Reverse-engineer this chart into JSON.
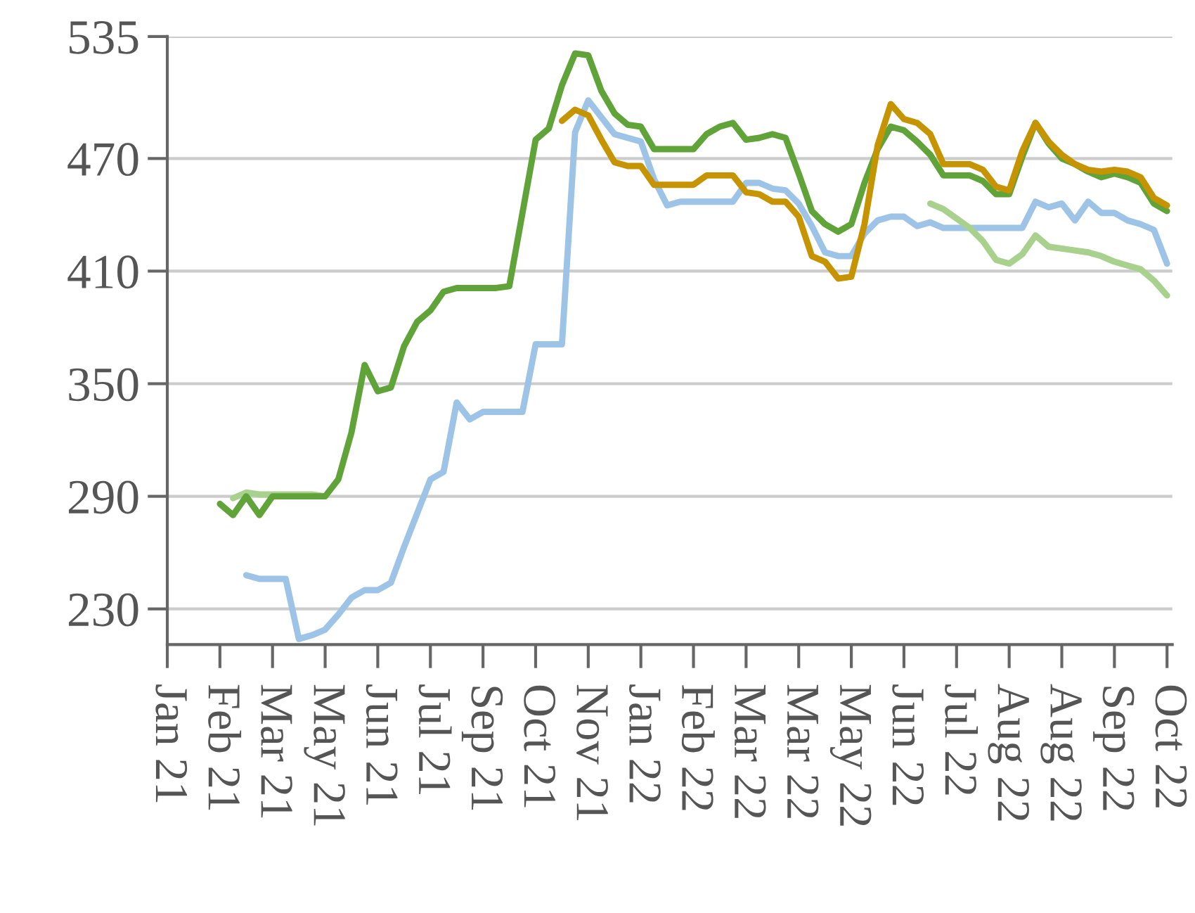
{
  "chart_data": {
    "type": "line",
    "ylim": [
      211,
      535
    ],
    "categories": [
      "Jan 21",
      null,
      null,
      null,
      "Feb 21",
      null,
      null,
      null,
      "Mar 21",
      null,
      null,
      null,
      "May 21",
      null,
      null,
      null,
      "Jun 21",
      null,
      null,
      null,
      "Jul 21",
      null,
      null,
      null,
      "Sep 21",
      null,
      null,
      null,
      "Oct 21",
      null,
      null,
      null,
      "Nov 21",
      null,
      null,
      null,
      "Jan 22",
      null,
      null,
      null,
      "Feb 22",
      null,
      null,
      null,
      "Mar 22",
      null,
      null,
      null,
      "Mar 22",
      null,
      null,
      null,
      "May 22",
      null,
      null,
      null,
      "Jun 22",
      null,
      null,
      null,
      "Jul 22",
      null,
      null,
      null,
      "Aug 22",
      null,
      null,
      null,
      "Aug 22",
      null,
      null,
      null,
      "Sep 22",
      null,
      null,
      null,
      "Oct 22"
    ],
    "yticks": [
      230,
      290,
      350,
      410,
      470,
      535
    ],
    "grid": "y",
    "marker": "none",
    "line_style": "solid",
    "series": [
      {
        "color": "#9dc3e6",
        "values": [
          null,
          null,
          null,
          null,
          null,
          null,
          248,
          246,
          246,
          246,
          214,
          216,
          219,
          227,
          236,
          240,
          240,
          244,
          263,
          281,
          299,
          303,
          340,
          331,
          335,
          335,
          335,
          335,
          371,
          371,
          371,
          484,
          501,
          492,
          483,
          481,
          479,
          459,
          445,
          447,
          447,
          447,
          447,
          447,
          457,
          457,
          454,
          453,
          446,
          434,
          420,
          418,
          418,
          430,
          437,
          439,
          439,
          434,
          436,
          433,
          433,
          433,
          433,
          433,
          433,
          433,
          447,
          444,
          446,
          437,
          447,
          441,
          441,
          437,
          435,
          432,
          414
        ]
      },
      {
        "color": "#a9d18e",
        "values": [
          null,
          null,
          null,
          null,
          null,
          289,
          292,
          291,
          291,
          291,
          291,
          291,
          290,
          null,
          null,
          null,
          null,
          null,
          null,
          null,
          null,
          null,
          null,
          null,
          null,
          null,
          null,
          null,
          null,
          null,
          null,
          null,
          null,
          null,
          null,
          null,
          null,
          null,
          null,
          null,
          null,
          null,
          null,
          null,
          null,
          null,
          null,
          null,
          null,
          null,
          null,
          null,
          null,
          null,
          null,
          null,
          null,
          null,
          446,
          443,
          438,
          433,
          426,
          416,
          414,
          419,
          429,
          423,
          422,
          421,
          420,
          418,
          415,
          413,
          411,
          405,
          397
        ]
      },
      {
        "color": "#5fa339",
        "values": [
          null,
          null,
          null,
          null,
          286,
          280,
          290,
          280,
          290,
          290,
          290,
          290,
          290,
          299,
          324,
          360,
          346,
          348,
          370,
          383,
          389,
          399,
          401,
          401,
          401,
          401,
          402,
          441,
          480,
          486,
          509,
          526,
          525,
          506,
          494,
          488,
          487,
          475,
          475,
          475,
          475,
          483,
          487,
          489,
          480,
          481,
          483,
          481,
          462,
          442,
          435,
          431,
          435,
          457,
          475,
          487,
          485,
          479,
          472,
          461,
          461,
          461,
          458,
          451,
          451,
          471,
          489,
          478,
          470,
          467,
          463,
          460,
          462,
          460,
          457,
          446,
          442
        ]
      },
      {
        "color": "#c59400",
        "values": [
          null,
          null,
          null,
          null,
          null,
          null,
          null,
          null,
          null,
          null,
          null,
          null,
          null,
          null,
          null,
          null,
          null,
          null,
          null,
          null,
          null,
          null,
          null,
          null,
          null,
          null,
          null,
          null,
          null,
          null,
          490,
          496,
          493,
          480,
          468,
          466,
          466,
          456,
          456,
          456,
          456,
          461,
          461,
          461,
          452,
          451,
          447,
          447,
          439,
          418,
          415,
          406,
          407,
          435,
          477,
          499,
          491,
          489,
          483,
          467,
          467,
          467,
          464,
          455,
          453,
          474,
          489,
          479,
          472,
          467,
          464,
          463,
          464,
          463,
          460,
          449,
          445
        ]
      }
    ]
  }
}
